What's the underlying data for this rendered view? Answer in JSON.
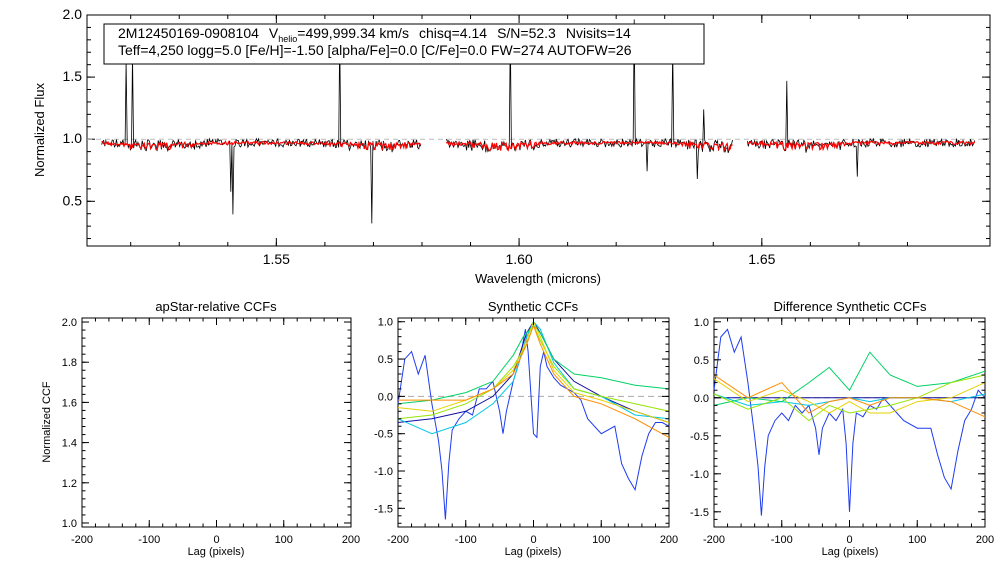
{
  "chart_data": [
    {
      "type": "line",
      "star_id": "2M12450169-0908104",
      "vhelio_label": "V",
      "vhelio_sub": "helio",
      "vhelio_value": "=499,999.34 km/s",
      "chisq": "chisq=4.14",
      "snr": "S/N=52.3",
      "nvisits": "Nvisits=14",
      "params": "Teff=4,250 logg=5.0 [Fe/H]=-1.50 [alpha/Fe]=0.0 [C/Fe]=0.0 FW=274 AUTOFW=26",
      "xlabel": "Wavelength (microns)",
      "ylabel": "Normalized Flux",
      "xlim": [
        1.511,
        1.697
      ],
      "ylim": [
        0.14,
        2.0
      ],
      "xticks": [
        "1.55",
        "1.60",
        "1.65"
      ],
      "yticks": [
        "0.5",
        "1.0",
        "1.5",
        "2.0"
      ],
      "chips": [
        [
          1.514,
          1.58
        ],
        [
          1.585,
          1.644
        ],
        [
          1.647,
          1.694
        ]
      ],
      "series": [
        {
          "name": "observed spectrum",
          "color": "#000000"
        },
        {
          "name": "best-fit model",
          "color": "#ff0000"
        }
      ]
    },
    {
      "type": "line",
      "title": "apStar-relative CCFs",
      "xlabel": "Lag (pixels)",
      "ylabel": "Normalized CCF",
      "xlim": [
        -200,
        200
      ],
      "ylim": [
        0.98,
        2.02
      ],
      "xticks": [
        "-200",
        "-100",
        "0",
        "100",
        "200"
      ],
      "yticks": [
        "1.0",
        "1.2",
        "1.4",
        "1.6",
        "1.8",
        "2.0"
      ],
      "series": []
    },
    {
      "type": "line",
      "title": "Synthetic CCFs",
      "xlabel": "Lag (pixels)",
      "xlim": [
        -200,
        200
      ],
      "ylim": [
        -1.75,
        1.05
      ],
      "xticks": [
        "-200",
        "-100",
        "0",
        "100",
        "200"
      ],
      "yticks": [
        "-1.5",
        "-1.0",
        "-0.5",
        "0.0",
        "0.5",
        "1.0"
      ],
      "series": [
        {
          "name": "combined",
          "color": "#1e3cf0",
          "x": [
            -200,
            -190,
            -180,
            -170,
            -160,
            -150,
            -140,
            -135,
            -130,
            -125,
            -120,
            -110,
            -100,
            -90,
            -80,
            -70,
            -60,
            -50,
            -45,
            -40,
            -30,
            -20,
            -12,
            -8,
            0,
            5,
            10,
            15,
            20,
            30,
            40,
            50,
            60,
            70,
            80,
            100,
            120,
            130,
            140,
            150,
            160,
            170,
            180,
            190,
            200
          ],
          "y": [
            -0.1,
            0.5,
            0.6,
            0.3,
            0.55,
            -0.1,
            -0.6,
            -1.0,
            -1.65,
            -0.9,
            -0.45,
            -0.3,
            -0.2,
            -0.25,
            0.1,
            0.1,
            0.2,
            -0.2,
            -0.5,
            -0.2,
            0.2,
            0.5,
            0.9,
            0.6,
            -0.5,
            -0.55,
            0.4,
            0.6,
            0.4,
            0.25,
            0.15,
            0.1,
            0.05,
            -0.05,
            -0.3,
            -0.5,
            -0.4,
            -0.9,
            -1.1,
            -1.25,
            -0.8,
            -0.5,
            -0.35,
            -0.35,
            -0.4
          ]
        },
        {
          "name": "visit 1",
          "color": "#1010a0",
          "x": [
            -200,
            -150,
            -100,
            -60,
            -30,
            -10,
            0,
            10,
            30,
            60,
            100,
            150,
            200
          ],
          "y": [
            -0.35,
            -0.3,
            -0.2,
            0.0,
            0.3,
            0.85,
            1.0,
            0.85,
            0.5,
            0.2,
            0.0,
            -0.2,
            -0.35
          ]
        },
        {
          "name": "visit 2",
          "color": "#00c8e6",
          "x": [
            -200,
            -150,
            -100,
            -60,
            -30,
            -10,
            0,
            10,
            30,
            60,
            100,
            150,
            200
          ],
          "y": [
            -0.3,
            -0.5,
            -0.35,
            -0.1,
            0.2,
            0.8,
            1.0,
            0.9,
            0.45,
            0.1,
            0.0,
            -0.25,
            -0.3
          ]
        },
        {
          "name": "visit 3",
          "color": "#00d264",
          "x": [
            -200,
            -150,
            -100,
            -60,
            -30,
            -15,
            0,
            10,
            30,
            60,
            100,
            150,
            200
          ],
          "y": [
            -0.1,
            -0.05,
            0.05,
            0.2,
            0.55,
            0.8,
            0.95,
            0.85,
            0.5,
            0.3,
            0.25,
            0.15,
            0.1
          ]
        },
        {
          "name": "visit 4",
          "color": "#96e600",
          "x": [
            -200,
            -150,
            -100,
            -60,
            -30,
            -10,
            0,
            10,
            30,
            60,
            100,
            150,
            200
          ],
          "y": [
            -0.3,
            -0.25,
            -0.1,
            0.1,
            0.4,
            0.7,
            0.95,
            0.75,
            0.4,
            0.1,
            0.0,
            -0.1,
            -0.2
          ]
        },
        {
          "name": "visit 5",
          "color": "#e6d200",
          "x": [
            -200,
            -150,
            -100,
            -60,
            -30,
            -10,
            0,
            10,
            30,
            60,
            100,
            150,
            200
          ],
          "y": [
            -0.15,
            -0.2,
            -0.05,
            0.1,
            0.35,
            0.75,
            1.0,
            0.8,
            0.35,
            0.05,
            -0.05,
            -0.2,
            -0.35
          ]
        },
        {
          "name": "visit 6",
          "color": "#ff8c00",
          "x": [
            -200,
            -150,
            -100,
            -60,
            -30,
            -10,
            0,
            10,
            30,
            60,
            100,
            150,
            200
          ],
          "y": [
            -0.05,
            -0.05,
            -0.05,
            0.1,
            0.3,
            0.7,
            0.95,
            0.7,
            0.3,
            0.0,
            -0.1,
            -0.3,
            -0.55
          ]
        }
      ]
    },
    {
      "type": "line",
      "title": "Difference Synthetic CCFs",
      "xlabel": "Lag (pixels)",
      "xlim": [
        -200,
        200
      ],
      "ylim": [
        -1.7,
        1.05
      ],
      "xticks": [
        "-200",
        "-100",
        "0",
        "100",
        "200"
      ],
      "yticks": [
        "-1.5",
        "-1.0",
        "-0.5",
        "0.0",
        "0.5",
        "1.0"
      ],
      "series": [
        {
          "name": "combined",
          "color": "#1e3cf0",
          "x": [
            -200,
            -190,
            -180,
            -170,
            -160,
            -150,
            -140,
            -135,
            -130,
            -125,
            -120,
            -110,
            -100,
            -90,
            -80,
            -70,
            -60,
            -50,
            -45,
            -40,
            -30,
            -20,
            -10,
            -5,
            0,
            5,
            10,
            20,
            30,
            40,
            50,
            60,
            70,
            80,
            100,
            120,
            130,
            140,
            150,
            160,
            170,
            180,
            190,
            200
          ],
          "y": [
            0.1,
            0.8,
            0.9,
            0.6,
            0.8,
            0.2,
            -0.5,
            -0.9,
            -1.55,
            -0.9,
            -0.5,
            -0.3,
            -0.2,
            -0.3,
            -0.1,
            -0.2,
            -0.1,
            -0.4,
            -0.75,
            -0.4,
            -0.2,
            -0.3,
            -0.15,
            -0.6,
            -1.5,
            -0.6,
            -0.2,
            -0.25,
            -0.1,
            -0.15,
            0.0,
            -0.1,
            -0.2,
            -0.3,
            -0.4,
            -0.4,
            -0.75,
            -1.05,
            -1.2,
            -0.7,
            -0.3,
            -0.15,
            0.1,
            0.0
          ]
        },
        {
          "name": "visit 1",
          "color": "#1010a0",
          "x": [
            -200,
            200
          ],
          "y": [
            0.0,
            0.0
          ]
        },
        {
          "name": "visit 2",
          "color": "#00c8e6",
          "x": [
            -200,
            -150,
            -100,
            -60,
            -30,
            0,
            30,
            60,
            100,
            150,
            200
          ],
          "y": [
            0.05,
            -0.1,
            -0.05,
            -0.1,
            -0.05,
            0.0,
            -0.05,
            0.0,
            0.0,
            -0.05,
            0.05
          ]
        },
        {
          "name": "visit 3",
          "color": "#00d264",
          "x": [
            -200,
            -150,
            -100,
            -60,
            -30,
            0,
            30,
            60,
            100,
            150,
            200
          ],
          "y": [
            -0.1,
            0.0,
            -0.05,
            0.2,
            0.4,
            0.1,
            0.6,
            0.3,
            0.15,
            0.2,
            0.35
          ]
        },
        {
          "name": "visit 4",
          "color": "#96e600",
          "x": [
            -200,
            -150,
            -100,
            -60,
            -30,
            0,
            30,
            60,
            100,
            150,
            200
          ],
          "y": [
            0.05,
            -0.15,
            0.0,
            -0.3,
            -0.1,
            -0.2,
            -0.15,
            -0.1,
            0.0,
            0.2,
            0.3
          ]
        },
        {
          "name": "visit 5",
          "color": "#e6d200",
          "x": [
            -200,
            -150,
            -100,
            -60,
            -30,
            0,
            30,
            60,
            100,
            150,
            200
          ],
          "y": [
            0.25,
            -0.05,
            0.1,
            -0.05,
            -0.2,
            -0.05,
            -0.2,
            -0.2,
            -0.05,
            0.0,
            0.2
          ]
        },
        {
          "name": "visit 6",
          "color": "#ff8c00",
          "x": [
            -200,
            -150,
            -100,
            -60,
            -30,
            0,
            30,
            60,
            100,
            150,
            200
          ],
          "y": [
            0.3,
            0.0,
            0.2,
            -0.2,
            -0.05,
            0.0,
            -0.1,
            0.0,
            0.0,
            -0.05,
            -0.25
          ]
        }
      ]
    }
  ]
}
